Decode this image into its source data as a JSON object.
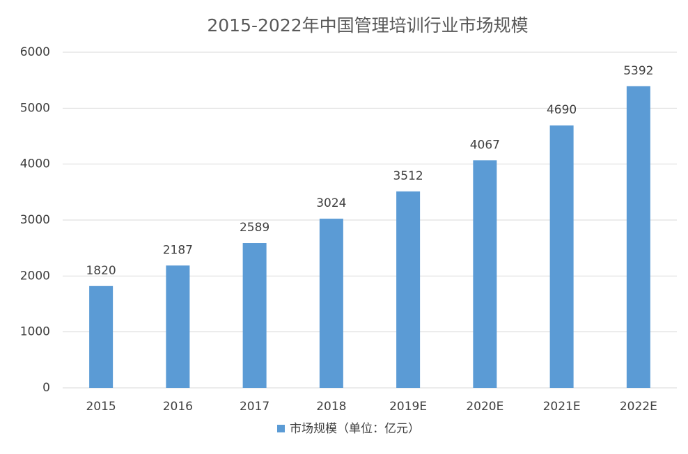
{
  "chart_data": {
    "type": "bar",
    "title": "2015-2022年中国管理培训行业市场规模",
    "categories": [
      "2015",
      "2016",
      "2017",
      "2018",
      "2019E",
      "2020E",
      "2021E",
      "2022E"
    ],
    "series": [
      {
        "name": "市场规模（单位：亿元）",
        "color": "#5b9bd5",
        "values": [
          1820,
          2187,
          2589,
          3024,
          3512,
          4067,
          4690,
          5392
        ]
      }
    ],
    "ylim": [
      0,
      6000
    ],
    "yticks": [
      0,
      1000,
      2000,
      3000,
      4000,
      5000,
      6000
    ],
    "grid": true,
    "legend": "bottom"
  }
}
